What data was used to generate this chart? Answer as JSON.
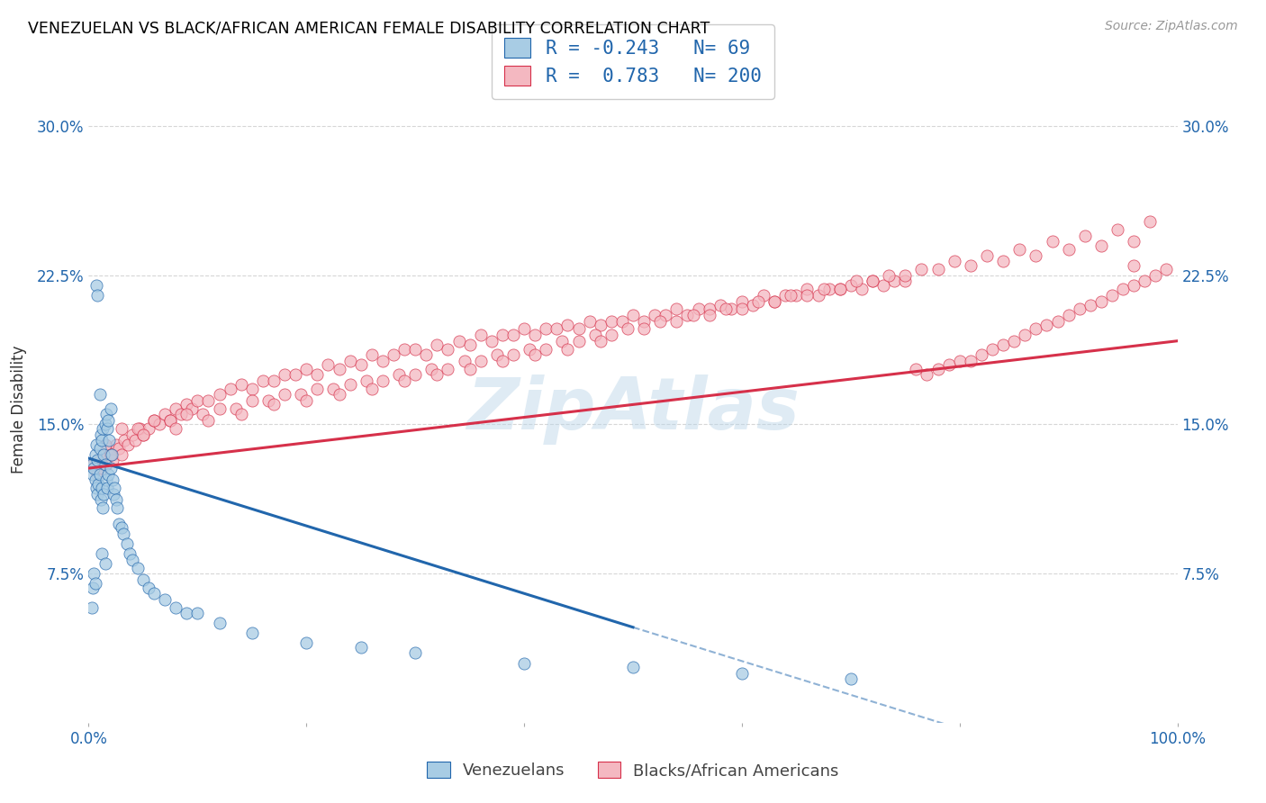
{
  "title": "VENEZUELAN VS BLACK/AFRICAN AMERICAN FEMALE DISABILITY CORRELATION CHART",
  "source": "Source: ZipAtlas.com",
  "ylabel": "Female Disability",
  "ven_R": -0.243,
  "ven_N": 69,
  "baa_R": 0.783,
  "baa_N": 200,
  "ven_color": "#a8cce4",
  "baa_color": "#f4b8c1",
  "ven_line_color": "#2166ac",
  "baa_line_color": "#d6304a",
  "legend_text_color": "#2166ac",
  "watermark": "ZipAtlas",
  "ytick_labels": [
    "7.5%",
    "15.0%",
    "22.5%",
    "30.0%"
  ],
  "ytick_values": [
    0.075,
    0.15,
    0.225,
    0.3
  ],
  "xmin": 0.0,
  "xmax": 1.0,
  "ymin": 0.0,
  "ymax": 0.315,
  "ven_line_x0": 0.0,
  "ven_line_y0": 0.133,
  "ven_line_x1": 0.5,
  "ven_line_y1": 0.048,
  "baa_line_x0": 0.0,
  "baa_line_y0": 0.128,
  "baa_line_x1": 1.0,
  "baa_line_y1": 0.192,
  "ven_x": [
    0.003,
    0.004,
    0.005,
    0.006,
    0.006,
    0.007,
    0.007,
    0.008,
    0.008,
    0.009,
    0.01,
    0.01,
    0.011,
    0.011,
    0.012,
    0.012,
    0.013,
    0.013,
    0.014,
    0.014,
    0.015,
    0.015,
    0.016,
    0.016,
    0.017,
    0.017,
    0.018,
    0.018,
    0.019,
    0.02,
    0.02,
    0.021,
    0.022,
    0.023,
    0.024,
    0.025,
    0.026,
    0.028,
    0.03,
    0.032,
    0.035,
    0.038,
    0.04,
    0.045,
    0.05,
    0.055,
    0.06,
    0.07,
    0.08,
    0.09,
    0.1,
    0.12,
    0.15,
    0.2,
    0.25,
    0.3,
    0.4,
    0.5,
    0.6,
    0.7,
    0.003,
    0.004,
    0.005,
    0.006,
    0.007,
    0.008,
    0.01,
    0.012,
    0.015
  ],
  "ven_y": [
    0.13,
    0.125,
    0.128,
    0.122,
    0.135,
    0.118,
    0.14,
    0.115,
    0.132,
    0.12,
    0.125,
    0.138,
    0.112,
    0.145,
    0.118,
    0.142,
    0.108,
    0.148,
    0.115,
    0.135,
    0.13,
    0.15,
    0.122,
    0.155,
    0.118,
    0.148,
    0.125,
    0.152,
    0.142,
    0.128,
    0.158,
    0.135,
    0.122,
    0.115,
    0.118,
    0.112,
    0.108,
    0.1,
    0.098,
    0.095,
    0.09,
    0.085,
    0.082,
    0.078,
    0.072,
    0.068,
    0.065,
    0.062,
    0.058,
    0.055,
    0.055,
    0.05,
    0.045,
    0.04,
    0.038,
    0.035,
    0.03,
    0.028,
    0.025,
    0.022,
    0.058,
    0.068,
    0.075,
    0.07,
    0.22,
    0.215,
    0.165,
    0.085,
    0.08
  ],
  "baa_x": [
    0.004,
    0.006,
    0.008,
    0.01,
    0.012,
    0.014,
    0.016,
    0.018,
    0.02,
    0.022,
    0.025,
    0.028,
    0.03,
    0.033,
    0.036,
    0.04,
    0.043,
    0.047,
    0.05,
    0.055,
    0.06,
    0.065,
    0.07,
    0.075,
    0.08,
    0.085,
    0.09,
    0.095,
    0.1,
    0.11,
    0.12,
    0.13,
    0.14,
    0.15,
    0.16,
    0.17,
    0.18,
    0.19,
    0.2,
    0.21,
    0.22,
    0.23,
    0.24,
    0.25,
    0.26,
    0.27,
    0.28,
    0.29,
    0.3,
    0.31,
    0.32,
    0.33,
    0.34,
    0.35,
    0.36,
    0.37,
    0.38,
    0.39,
    0.4,
    0.41,
    0.42,
    0.43,
    0.44,
    0.45,
    0.46,
    0.47,
    0.48,
    0.49,
    0.5,
    0.51,
    0.52,
    0.53,
    0.54,
    0.55,
    0.56,
    0.57,
    0.58,
    0.59,
    0.6,
    0.61,
    0.62,
    0.63,
    0.64,
    0.65,
    0.66,
    0.67,
    0.68,
    0.69,
    0.7,
    0.71,
    0.72,
    0.73,
    0.74,
    0.75,
    0.76,
    0.77,
    0.78,
    0.79,
    0.8,
    0.81,
    0.82,
    0.83,
    0.84,
    0.85,
    0.86,
    0.87,
    0.88,
    0.89,
    0.9,
    0.91,
    0.92,
    0.93,
    0.94,
    0.95,
    0.96,
    0.97,
    0.98,
    0.99,
    0.03,
    0.06,
    0.09,
    0.12,
    0.15,
    0.18,
    0.21,
    0.24,
    0.27,
    0.3,
    0.33,
    0.36,
    0.39,
    0.42,
    0.45,
    0.48,
    0.51,
    0.54,
    0.57,
    0.6,
    0.63,
    0.66,
    0.69,
    0.72,
    0.75,
    0.78,
    0.81,
    0.84,
    0.87,
    0.9,
    0.93,
    0.96,
    0.015,
    0.045,
    0.075,
    0.105,
    0.135,
    0.165,
    0.195,
    0.225,
    0.255,
    0.285,
    0.315,
    0.345,
    0.375,
    0.405,
    0.435,
    0.465,
    0.495,
    0.525,
    0.555,
    0.585,
    0.615,
    0.645,
    0.675,
    0.705,
    0.735,
    0.765,
    0.795,
    0.825,
    0.855,
    0.885,
    0.915,
    0.945,
    0.975,
    0.02,
    0.05,
    0.08,
    0.11,
    0.14,
    0.17,
    0.2,
    0.23,
    0.26,
    0.29,
    0.32,
    0.35,
    0.38,
    0.41,
    0.44,
    0.47,
    0.96
  ],
  "baa_y": [
    0.13,
    0.128,
    0.125,
    0.132,
    0.128,
    0.135,
    0.13,
    0.138,
    0.135,
    0.132,
    0.14,
    0.138,
    0.135,
    0.142,
    0.14,
    0.145,
    0.142,
    0.148,
    0.145,
    0.148,
    0.152,
    0.15,
    0.155,
    0.152,
    0.158,
    0.155,
    0.16,
    0.158,
    0.162,
    0.162,
    0.165,
    0.168,
    0.17,
    0.168,
    0.172,
    0.172,
    0.175,
    0.175,
    0.178,
    0.175,
    0.18,
    0.178,
    0.182,
    0.18,
    0.185,
    0.182,
    0.185,
    0.188,
    0.188,
    0.185,
    0.19,
    0.188,
    0.192,
    0.19,
    0.195,
    0.192,
    0.195,
    0.195,
    0.198,
    0.195,
    0.198,
    0.198,
    0.2,
    0.198,
    0.202,
    0.2,
    0.202,
    0.202,
    0.205,
    0.202,
    0.205,
    0.205,
    0.208,
    0.205,
    0.208,
    0.208,
    0.21,
    0.208,
    0.212,
    0.21,
    0.215,
    0.212,
    0.215,
    0.215,
    0.218,
    0.215,
    0.218,
    0.218,
    0.22,
    0.218,
    0.222,
    0.22,
    0.222,
    0.222,
    0.178,
    0.175,
    0.178,
    0.18,
    0.182,
    0.182,
    0.185,
    0.188,
    0.19,
    0.192,
    0.195,
    0.198,
    0.2,
    0.202,
    0.205,
    0.208,
    0.21,
    0.212,
    0.215,
    0.218,
    0.22,
    0.222,
    0.225,
    0.228,
    0.148,
    0.152,
    0.155,
    0.158,
    0.162,
    0.165,
    0.168,
    0.17,
    0.172,
    0.175,
    0.178,
    0.182,
    0.185,
    0.188,
    0.192,
    0.195,
    0.198,
    0.202,
    0.205,
    0.208,
    0.212,
    0.215,
    0.218,
    0.222,
    0.225,
    0.228,
    0.23,
    0.232,
    0.235,
    0.238,
    0.24,
    0.242,
    0.14,
    0.148,
    0.152,
    0.155,
    0.158,
    0.162,
    0.165,
    0.168,
    0.172,
    0.175,
    0.178,
    0.182,
    0.185,
    0.188,
    0.192,
    0.195,
    0.198,
    0.202,
    0.205,
    0.208,
    0.212,
    0.215,
    0.218,
    0.222,
    0.225,
    0.228,
    0.232,
    0.235,
    0.238,
    0.242,
    0.245,
    0.248,
    0.252,
    0.135,
    0.145,
    0.148,
    0.152,
    0.155,
    0.16,
    0.162,
    0.165,
    0.168,
    0.172,
    0.175,
    0.178,
    0.182,
    0.185,
    0.188,
    0.192,
    0.23
  ]
}
